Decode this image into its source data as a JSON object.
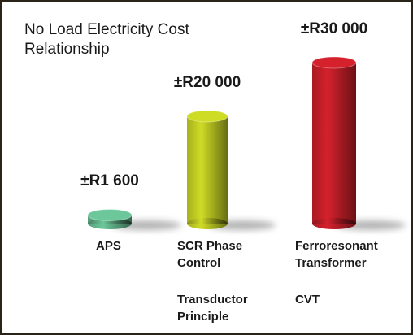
{
  "chart_data": {
    "type": "bar",
    "title": "No Load Electricity Cost Relationship",
    "categories": [
      "APS",
      "SCR Phase Control",
      "Ferroresonant Transformer"
    ],
    "values": [
      1600,
      20000,
      30000
    ],
    "value_labels": [
      "±R1 600",
      "±R20 000",
      "±R30 000"
    ],
    "colors": [
      "#6cc79a",
      "#cfdc25",
      "#d4212c"
    ],
    "annotations": [
      "Transductor Principle",
      "CVT"
    ]
  }
}
